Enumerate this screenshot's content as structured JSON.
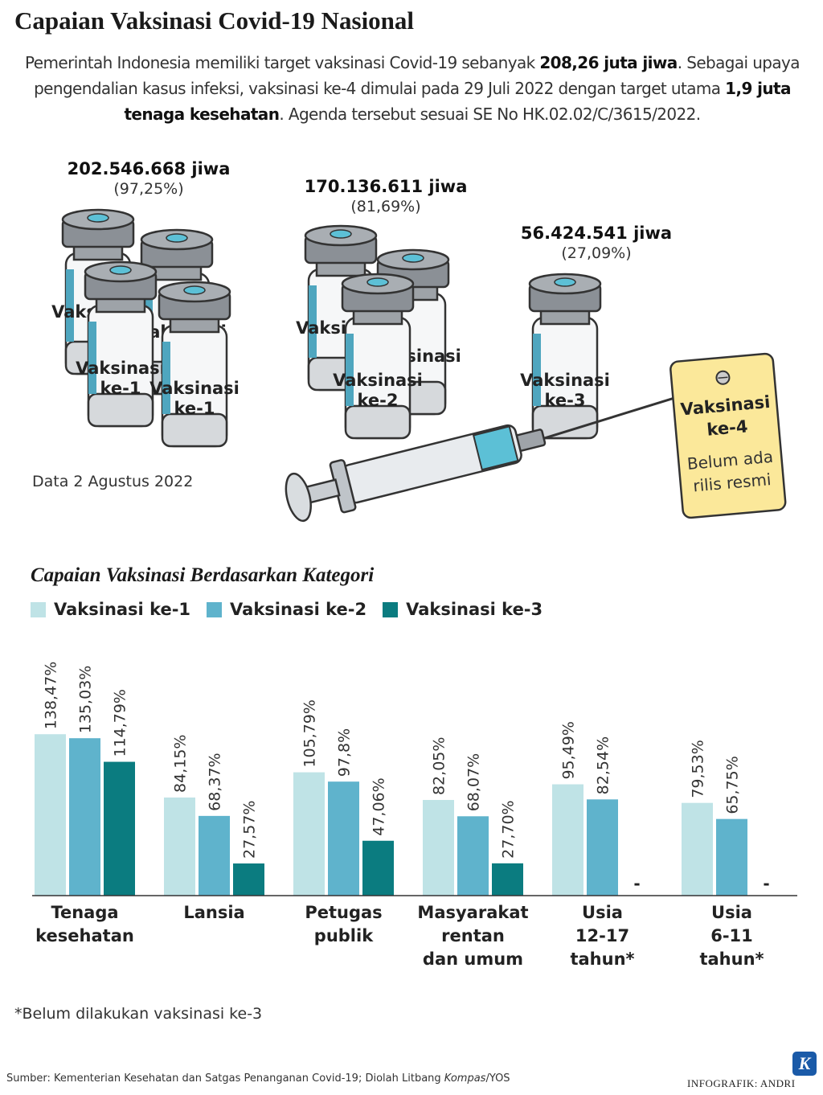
{
  "title": "Capaian Vaksinasi Covid-19 Nasional",
  "intro": {
    "p1": "Pemerintah Indonesia memiliki target vaksinasi Covid-19 sebanyak ",
    "b1": "208,26 juta jiwa",
    "p2": ". Sebagai upaya pengendalian kasus infeksi, vaksinasi ke-4 dimulai pada 29 Juli 2022 dengan target utama ",
    "b2": "1,9 juta tenaga kesehatan",
    "p3": ". Agenda tersebut sesuai SE No HK.02.02/C/3615/2022."
  },
  "stats": [
    {
      "value": "202.546.668 jiwa",
      "pct": "(97,25%)"
    },
    {
      "value": "170.136.611 jiwa",
      "pct": "(81,69%)"
    },
    {
      "value": "56.424.541 jiwa",
      "pct": "(27,09%)"
    }
  ],
  "vial_labels": {
    "dose1": [
      "Vaksinasi",
      "ke-1"
    ],
    "dose2": [
      "Vaksinasi",
      "ke-2"
    ],
    "dose3": [
      "Vaksinasi",
      "ke-3"
    ]
  },
  "tag": {
    "title1": "Vaksinasi",
    "title2": "ke-4",
    "note1": "Belum ada",
    "note2": "rilis resmi"
  },
  "data_date": "Data 2 Agustus 2022",
  "chart_subtitle": "Capaian Vaksinasi Berdasarkan Kategori",
  "colors": {
    "dose1": "#bfe3e6",
    "dose2": "#5fb3cc",
    "dose3": "#0b7c80"
  },
  "chart_data": {
    "type": "bar",
    "categories": [
      [
        "Tenaga",
        "kesehatan"
      ],
      [
        "Lansia"
      ],
      [
        "Petugas",
        "publik"
      ],
      [
        "Masyarakat",
        "rentan",
        "dan umum"
      ],
      [
        "Usia",
        "12-17",
        "tahun*"
      ],
      [
        "Usia",
        "6-11",
        "tahun*"
      ]
    ],
    "series": [
      {
        "name": "Vaksinasi ke-1",
        "values": [
          138.47,
          84.15,
          105.79,
          82.05,
          95.49,
          79.53
        ],
        "labels": [
          "138,47%",
          "84,15%",
          "105,79%",
          "82,05%",
          "95,49%",
          "79,53%"
        ]
      },
      {
        "name": "Vaksinasi ke-2",
        "values": [
          135.03,
          68.37,
          97.8,
          68.07,
          82.54,
          65.75
        ],
        "labels": [
          "135,03%",
          "68,37%",
          "97,8%",
          "68,07%",
          "82,54%",
          "65,75%"
        ]
      },
      {
        "name": "Vaksinasi ke-3",
        "values": [
          114.79,
          27.57,
          47.06,
          27.7,
          null,
          null
        ],
        "labels": [
          "114,79%",
          "27,57%",
          "47,06%",
          "27,70%",
          "-",
          "-"
        ]
      }
    ],
    "ylim": [
      0,
      140
    ],
    "grid": false,
    "legend": "top-left"
  },
  "footnote": "*Belum dilakukan vaksinasi ke-3",
  "source": {
    "prefix": "Sumber: Kementerian Kesehatan dan Satgas Penanganan Covid-19; Diolah Litbang ",
    "italic": "Kompas",
    "suffix": "/YOS"
  },
  "credit": "INFOGRAFIK: ANDRI",
  "logo_letter": "K"
}
